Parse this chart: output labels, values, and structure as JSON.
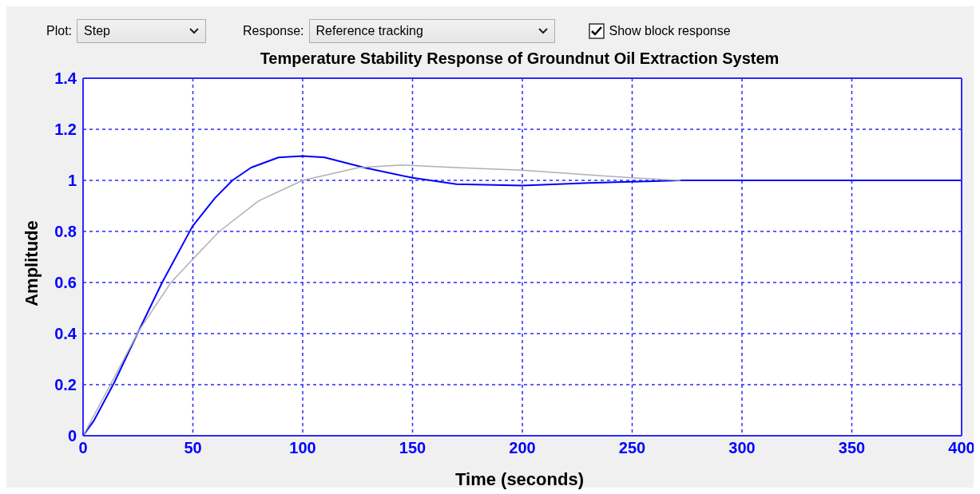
{
  "chart_data": {
    "type": "line",
    "title": "Temperature Stability Response of Groundnut Oil Extraction System",
    "xlabel": "Time (seconds)",
    "ylabel": "Amplitude",
    "annotations": [
      "Plot:",
      "Step",
      "Response:",
      "Reference tracking",
      "Show block response"
    ],
    "series": [
      {
        "color": "#0000ff",
        "x": [
          0,
          5,
          14.3,
          25.3,
          36,
          49.8,
          60,
          68,
          76.5,
          89,
          100,
          110,
          128,
          150,
          170,
          200,
          230,
          260,
          272,
          400
        ],
        "values": [
          0,
          0.06,
          0.21,
          0.41,
          0.6,
          0.82,
          0.93,
          1.0,
          1.05,
          1.09,
          1.095,
          1.09,
          1.05,
          1.01,
          0.985,
          0.98,
          0.99,
          0.997,
          1,
          1
        ]
      },
      {
        "color": "#b0b0b0",
        "x": [
          0,
          5,
          14.3,
          25.3,
          40,
          49.8,
          62,
          80,
          100,
          125.5,
          145,
          170,
          200,
          250,
          272
        ],
        "values": [
          0,
          0.08,
          0.23,
          0.41,
          0.6,
          0.69,
          0.8,
          0.92,
          1.0,
          1.05,
          1.06,
          1.05,
          1.04,
          1.01,
          1.0
        ]
      }
    ],
    "xlim": [
      0,
      400
    ],
    "xticks": [
      0,
      50,
      100,
      150,
      200,
      250,
      300,
      350,
      400
    ],
    "ylim": [
      0,
      1.4
    ],
    "yticks": [
      0,
      0.2,
      0.4,
      0.6,
      0.8,
      1,
      1.2,
      1.4
    ],
    "grid": true,
    "legend": false,
    "marker": "none",
    "line_style": "solid"
  }
}
